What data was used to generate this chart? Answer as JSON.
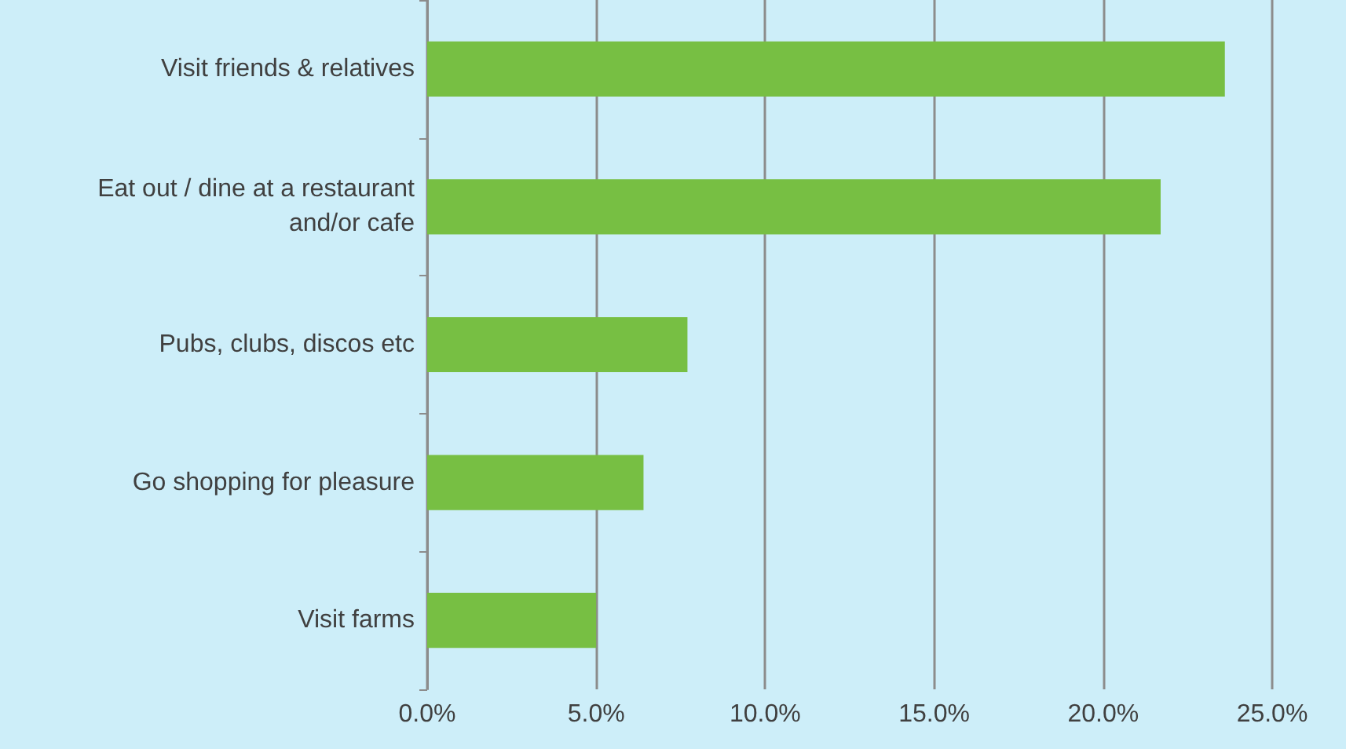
{
  "chart_data": {
    "type": "bar",
    "orientation": "horizontal",
    "categories": [
      "Visit friends & relatives",
      "Eat out / dine at a restaurant\nand/or cafe",
      "Pubs, clubs, discos etc",
      "Go shopping for pleasure",
      "Visit farms"
    ],
    "values": [
      23.6,
      21.7,
      7.7,
      6.4,
      5.0
    ],
    "color": "#77bf43",
    "xlim": [
      0,
      25
    ],
    "xticks": [
      {
        "value": 0,
        "label": "0.0%"
      },
      {
        "value": 5,
        "label": "5.0%"
      },
      {
        "value": 10,
        "label": "10.0%"
      },
      {
        "value": 15,
        "label": "15.0%"
      },
      {
        "value": 20,
        "label": "20.0%"
      },
      {
        "value": 25,
        "label": "25.0%"
      }
    ],
    "grid": "x"
  }
}
